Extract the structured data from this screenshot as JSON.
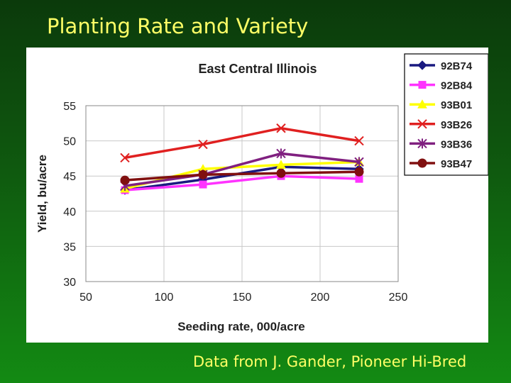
{
  "slide": {
    "title": "Planting Rate and Variety",
    "footer": "Data from J. Gander, Pioneer Hi-Bred"
  },
  "chart_data": {
    "type": "line",
    "title": "East Central Illinois",
    "xlabel": "Seeding rate, 000/acre",
    "ylabel": "Yield, bu/acre",
    "xlim": [
      50,
      250
    ],
    "ylim": [
      30,
      55
    ],
    "xticks": [
      50,
      100,
      150,
      200,
      250
    ],
    "yticks": [
      30,
      35,
      40,
      45,
      50,
      55
    ],
    "x": [
      75,
      125,
      175,
      225
    ],
    "grid": true,
    "legend_position": "right",
    "series": [
      {
        "name": "92B74",
        "color": "#1a1a80",
        "marker": "diamond",
        "values": [
          43.0,
          44.5,
          46.3,
          46.0
        ]
      },
      {
        "name": "92B84",
        "color": "#ff33ff",
        "marker": "square",
        "values": [
          43.0,
          43.8,
          45.0,
          44.6
        ]
      },
      {
        "name": "93B01",
        "color": "#ffff00",
        "marker": "triangle",
        "values": [
          43.2,
          46.0,
          46.6,
          47.0
        ]
      },
      {
        "name": "93B26",
        "color": "#e02020",
        "marker": "x",
        "values": [
          47.6,
          49.5,
          51.8,
          50.0
        ]
      },
      {
        "name": "93B36",
        "color": "#802080",
        "marker": "asterisk",
        "values": [
          43.6,
          45.2,
          48.2,
          47.0
        ]
      },
      {
        "name": "93B47",
        "color": "#801010",
        "marker": "circle",
        "values": [
          44.4,
          45.2,
          45.4,
          45.6
        ]
      }
    ]
  }
}
